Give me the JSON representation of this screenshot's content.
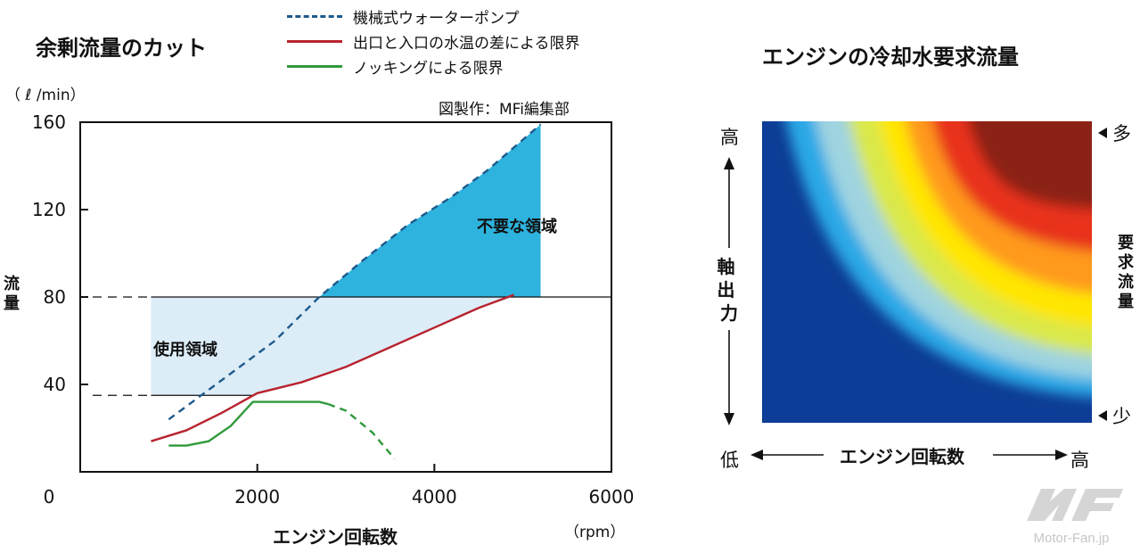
{
  "colors": {
    "pump_line": "#1e5a8c",
    "outlet_line": "#b8232f",
    "knock_line": "#2f9a3a",
    "unnecessary_fill": "#2db3de",
    "used_fill": "#dcedf8",
    "frame": "#111111"
  },
  "chart_data": [
    {
      "type": "line",
      "title": "余剰流量のカット",
      "xlabel": "エンジン回転数",
      "xunit": "（rpm）",
      "ylabel": "流量",
      "yunit": "（ ℓ /min）",
      "credit": "図製作：MFi編集部",
      "xlim": [
        0,
        6000
      ],
      "ylim": [
        0,
        160
      ],
      "x_ticks": [
        0,
        2000,
        4000,
        6000
      ],
      "y_ticks": [
        40,
        80,
        120,
        160
      ],
      "x_tick_labels": [
        "0",
        "2000",
        "4000",
        "6000"
      ],
      "y_tick_labels": [
        "40",
        "80",
        "120",
        "160"
      ],
      "grid": false,
      "legend_position": "top",
      "series": [
        {
          "name": "機械式ウォーターポンプ",
          "style": "dashed",
          "x": [
            1000,
            1600,
            2200,
            2700,
            3200,
            3700,
            4200,
            4600,
            5200
          ],
          "y": [
            24,
            42,
            60,
            80,
            97,
            113,
            126,
            138,
            159
          ]
        },
        {
          "name": "出口と入口の水温の差による限界",
          "style": "solid",
          "x": [
            800,
            1200,
            1600,
            2000,
            2500,
            3000,
            3500,
            4000,
            4500,
            4900
          ],
          "y": [
            14,
            19,
            27,
            36,
            41,
            48,
            57,
            66,
            75,
            81
          ]
        },
        {
          "name": "ノッキングによる限界",
          "style": "solid-then-dashed",
          "x": [
            1000,
            1200,
            1450,
            1700,
            1950,
            2100,
            2400,
            2700,
            2800,
            3000,
            3300,
            3550
          ],
          "y": [
            12,
            12,
            14,
            21,
            32,
            32,
            32,
            32,
            31,
            28,
            18,
            6
          ]
        }
      ],
      "regions": [
        {
          "name": "不要な領域",
          "description_label": "不要な領域"
        },
        {
          "name": "使用領域",
          "description_label": "使用領域",
          "x_range": [
            800,
            4900
          ],
          "y_range": [
            35,
            80
          ]
        }
      ],
      "reference_lines_y": [
        80,
        35
      ]
    },
    {
      "type": "heatmap",
      "title": "エンジンの冷却水要求流量",
      "xlabel": "エンジン回転数",
      "ylabel": "軸出力",
      "x_low_label": "低",
      "x_high_label": "高",
      "y_high_label": "高",
      "colorbar_label": "要求流量",
      "colorbar_high": "多",
      "colorbar_low": "少",
      "colorscale": [
        "#0d3d96",
        "#2aa8e6",
        "#9fd4e0",
        "#d9e84a",
        "#ffe600",
        "#ff9a1a",
        "#e8321e",
        "#8b2116"
      ]
    }
  ],
  "watermark": {
    "text": "Motor-Fan.jp"
  }
}
